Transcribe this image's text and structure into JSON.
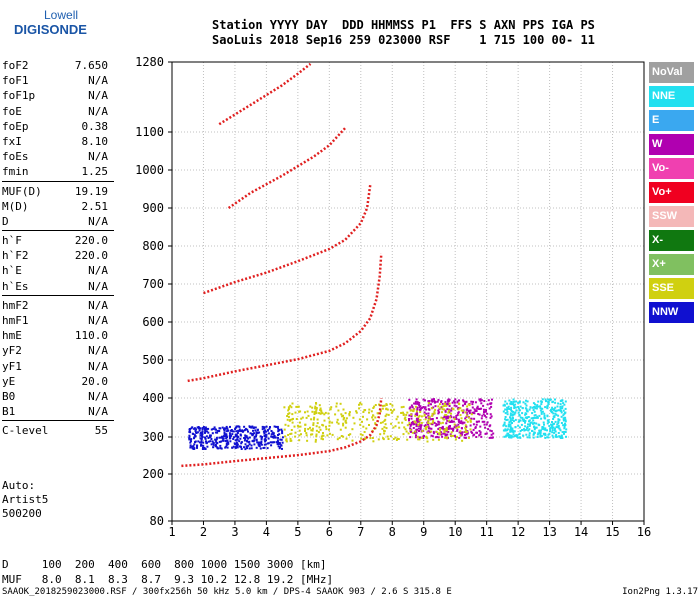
{
  "logo": {
    "line1": "Lowell",
    "line2": "DIGISONDE"
  },
  "header": {
    "line1": "Station YYYY DAY  DDD HHMMSS P1  FFS S AXN PPS IGA PS",
    "line2": "SaoLuis 2018 Sep16 259 023000 RSF    1 715 100 00- 11"
  },
  "params": [
    {
      "name": "foF2",
      "value": "7.650"
    },
    {
      "name": "foF1",
      "value": "N/A"
    },
    {
      "name": "foF1p",
      "value": "N/A"
    },
    {
      "name": "foE",
      "value": "N/A"
    },
    {
      "name": "foEp",
      "value": "0.38"
    },
    {
      "name": "fxI",
      "value": "8.10"
    },
    {
      "name": "foEs",
      "value": "N/A"
    },
    {
      "name": "fmin",
      "value": "1.25"
    },
    {
      "name": "MUF(D)",
      "value": "19.19",
      "sep": true
    },
    {
      "name": "M(D)",
      "value": "2.51"
    },
    {
      "name": "D",
      "value": "N/A"
    },
    {
      "name": "h`F",
      "value": "220.0",
      "sep": true
    },
    {
      "name": "h`F2",
      "value": "220.0"
    },
    {
      "name": "h`E",
      "value": "N/A"
    },
    {
      "name": "h`Es",
      "value": "N/A"
    },
    {
      "name": "hmF2",
      "value": "N/A",
      "sep": true
    },
    {
      "name": "hmF1",
      "value": "N/A"
    },
    {
      "name": "hmE",
      "value": "110.0"
    },
    {
      "name": "yF2",
      "value": "N/A"
    },
    {
      "name": "yF1",
      "value": "N/A"
    },
    {
      "name": "yE",
      "value": "20.0"
    },
    {
      "name": "B0",
      "value": "N/A"
    },
    {
      "name": "B1",
      "value": "N/A"
    },
    {
      "name": "C-level",
      "value": "55",
      "sep": true
    }
  ],
  "auto": {
    "line1": "Auto:",
    "line2": "Artist5",
    "line3": "500200"
  },
  "legend": [
    {
      "label": "NoVal",
      "color": "#a0a0a0"
    },
    {
      "label": "NNE",
      "color": "#22e0f0"
    },
    {
      "label": "E",
      "color": "#3aa8f0"
    },
    {
      "label": "W",
      "color": "#b000b0"
    },
    {
      "label": "Vo-",
      "color": "#f040b0"
    },
    {
      "label": "Vo+",
      "color": "#f00020"
    },
    {
      "label": "SSW",
      "color": "#f4b8b8"
    },
    {
      "label": "X-",
      "color": "#107810"
    },
    {
      "label": "X+",
      "color": "#80c060"
    },
    {
      "label": "SSE",
      "color": "#d0d010"
    },
    {
      "label": "NNW",
      "color": "#1010d0"
    }
  ],
  "muf_table": {
    "line1": "D     100  200  400  600  800 1000 1500 3000 [km]",
    "line2": "MUF   8.0  8.1  8.3  8.7  9.3 10.2 12.8 19.2 [MHz]"
  },
  "footer": {
    "left": "SAAOK_2018259023000.RSF / 300fx256h 50 kHz 5.0 km / DPS-4 SAAOK 903 / 2.6 S 315.8 E",
    "right": "Ion2Png 1.3.17"
  },
  "chart_data": {
    "type": "scatter",
    "xlim": [
      1,
      16
    ],
    "ylim": [
      80,
      1280
    ],
    "x_ticks": [
      1,
      2,
      3,
      4,
      5,
      6,
      7,
      8,
      9,
      10,
      11,
      12,
      13,
      14,
      15,
      16
    ],
    "y_ticks": [
      80,
      200,
      300,
      400,
      500,
      600,
      700,
      800,
      900,
      1000,
      1100,
      1280
    ],
    "grid": true,
    "y_scale": "piecewise",
    "traces": [
      {
        "name": "O trace 1",
        "color": "#e02020",
        "x": [
          1.3,
          2.0,
          3.0,
          4.0,
          5.0,
          6.0,
          6.5,
          7.0,
          7.3,
          7.5,
          7.6,
          7.65
        ],
        "y": [
          222,
          226,
          235,
          243,
          251,
          262,
          272,
          288,
          305,
          330,
          360,
          400
        ]
      },
      {
        "name": "O trace 2",
        "color": "#e02020",
        "x": [
          1.5,
          2.0,
          3.0,
          4.0,
          5.0,
          6.0,
          6.5,
          7.0,
          7.3,
          7.5,
          7.6,
          7.65
        ],
        "y": [
          445,
          452,
          470,
          486,
          502,
          524,
          544,
          576,
          610,
          660,
          720,
          780
        ]
      },
      {
        "name": "O trace 3",
        "color": "#e02020",
        "x": [
          2.0,
          3.0,
          4.0,
          5.0,
          6.0,
          6.5,
          7.0,
          7.2,
          7.3
        ],
        "y": [
          676,
          705,
          730,
          760,
          792,
          816,
          860,
          900,
          960
        ]
      },
      {
        "name": "O trace 4",
        "color": "#e02020",
        "x": [
          2.8,
          3.5,
          4.5,
          5.5,
          6.0,
          6.5
        ],
        "y": [
          900,
          940,
          985,
          1035,
          1065,
          1110
        ]
      },
      {
        "name": "O trace 5",
        "color": "#e02020",
        "x": [
          2.5,
          3.5,
          4.5,
          5.0,
          5.4
        ],
        "y": [
          1120,
          1170,
          1220,
          1250,
          1275
        ]
      }
    ],
    "clusters": [
      {
        "name": "F2 spread",
        "color": "#b000b0",
        "x": [
          8.5,
          11.2
        ],
        "y": [
          300,
          400
        ]
      },
      {
        "name": "F2 spread NNE",
        "color": "#22e0f0",
        "x": [
          11.5,
          13.5
        ],
        "y": [
          300,
          400
        ]
      },
      {
        "name": "low spread",
        "color": "#1010d0",
        "x": [
          1.5,
          4.5
        ],
        "y": [
          270,
          330
        ]
      },
      {
        "name": "SSE spread",
        "color": "#d0d010",
        "x": [
          4.5,
          10.5
        ],
        "y": [
          290,
          390
        ]
      }
    ]
  }
}
